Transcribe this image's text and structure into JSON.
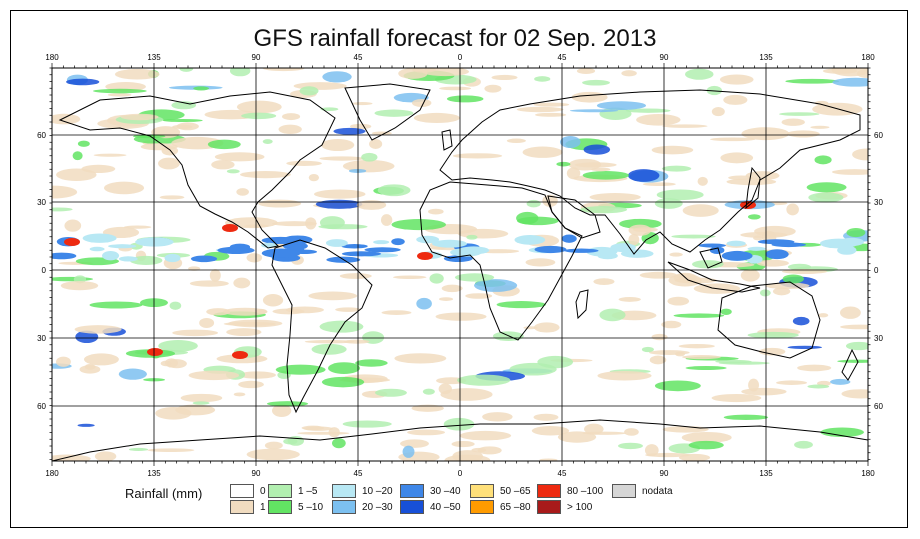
{
  "title": "GFS rainfall forecast for 02 Sep. 2013",
  "lon_ticks": [
    "180",
    "135",
    "90",
    "45",
    "0",
    "45",
    "90",
    "135",
    "180"
  ],
  "lat_ticks": [
    "60",
    "30",
    "0",
    "30",
    "60"
  ],
  "legend": {
    "title": "Rainfall (mm)",
    "items": [
      {
        "label": "0",
        "color": "#ffffff"
      },
      {
        "label": "1",
        "color": "#f1dcc0"
      },
      {
        "label": "1 –5",
        "color": "#b2efb0"
      },
      {
        "label": "5 –10",
        "color": "#62e463"
      },
      {
        "label": "10 –20",
        "color": "#b8e8f4"
      },
      {
        "label": "20 –30",
        "color": "#7cc0f0"
      },
      {
        "label": "30 –40",
        "color": "#3f87e8"
      },
      {
        "label": "40 –50",
        "color": "#1750d8"
      },
      {
        "label": "50 –65",
        "color": "#ffe07a"
      },
      {
        "label": "65 –80",
        "color": "#ff9b00"
      },
      {
        "label": "80 –100",
        "color": "#ee2a10"
      },
      {
        "label": "> 100",
        "color": "#a81a1a"
      },
      {
        "label": "nodata",
        "color": "#d6d6d6"
      }
    ]
  }
}
